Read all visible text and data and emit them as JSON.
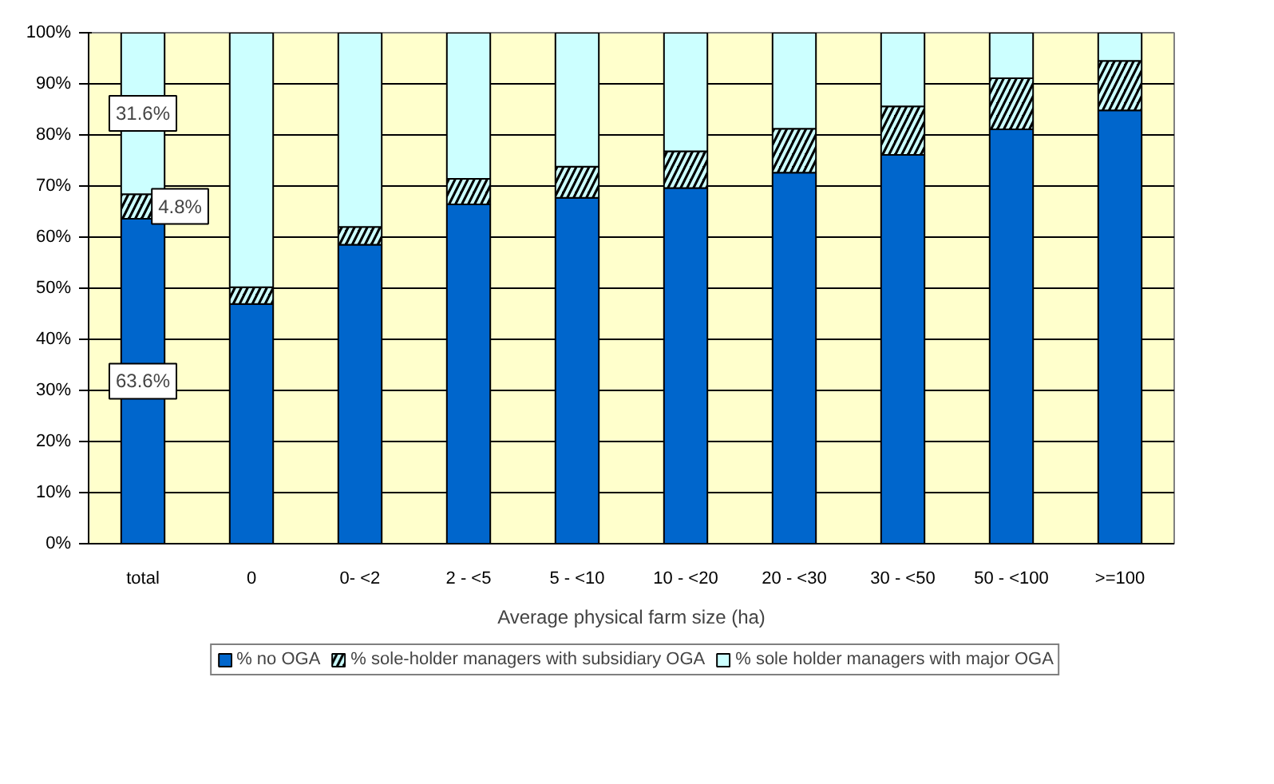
{
  "chart_data": {
    "type": "bar",
    "stacked": true,
    "xlabel": "Average physical farm size (ha)",
    "categories": [
      "total",
      "0",
      "0- <2",
      "2 - <5",
      "5 - <10",
      "10 - <20",
      "20 - <30",
      "30 - <50",
      "50 - <100",
      ">=100"
    ],
    "series": [
      {
        "name": "% no OGA",
        "color": "#0066cc",
        "values": [
          63.6,
          46.9,
          58.5,
          66.4,
          67.7,
          69.6,
          72.6,
          76.1,
          81.1,
          84.8
        ],
        "value_labels": [
          "63.6%",
          null,
          null,
          null,
          null,
          null,
          null,
          null,
          null,
          null
        ]
      },
      {
        "name": "% sole-holder managers with subsidiary OGA",
        "color": "#000000",
        "values": [
          4.8,
          3.3,
          3.5,
          5.0,
          6.1,
          7.2,
          8.6,
          9.5,
          10.0,
          9.7
        ],
        "value_labels": [
          "4.8%",
          null,
          null,
          null,
          null,
          null,
          null,
          null,
          null,
          null
        ]
      },
      {
        "name": "% sole holder managers with major OGA",
        "color": "#ccffff",
        "values": [
          31.6,
          49.8,
          38.0,
          28.6,
          26.2,
          23.2,
          18.8,
          14.4,
          8.9,
          5.5
        ],
        "value_labels": [
          "31.6%",
          null,
          null,
          null,
          null,
          null,
          null,
          null,
          null,
          null
        ]
      }
    ],
    "ylim": [
      0,
      100
    ],
    "yticks": [
      {
        "value": 0,
        "label": "0%"
      },
      {
        "value": 10,
        "label": "10%"
      },
      {
        "value": 20,
        "label": "20%"
      },
      {
        "value": 30,
        "label": "30%"
      },
      {
        "value": 40,
        "label": "40%"
      },
      {
        "value": 50,
        "label": "50%"
      },
      {
        "value": 60,
        "label": "60%"
      },
      {
        "value": 70,
        "label": "70%"
      },
      {
        "value": 80,
        "label": "80%"
      },
      {
        "value": 90,
        "label": "90%"
      },
      {
        "value": 100,
        "label": "100%"
      }
    ],
    "grid": "y",
    "legend": "bottom"
  }
}
